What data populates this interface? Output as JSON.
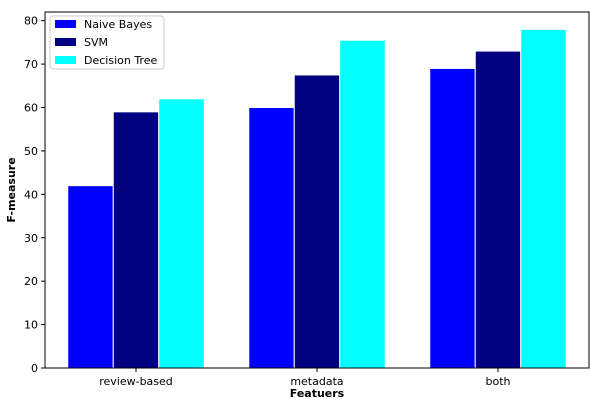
{
  "chart_data": {
    "type": "bar",
    "title": "",
    "xlabel": "Featuers",
    "ylabel": "F-measure",
    "categories": [
      "review-based",
      "metadata",
      "both"
    ],
    "series": [
      {
        "name": "Naive Bayes",
        "color": "#0000ff",
        "values": [
          42,
          60,
          69
        ]
      },
      {
        "name": "SVM",
        "color": "#000080",
        "values": [
          59,
          67.5,
          73
        ]
      },
      {
        "name": "Decision Tree",
        "color": "#00ffff",
        "values": [
          62,
          75.5,
          78
        ]
      }
    ],
    "ylim": [
      0,
      82
    ],
    "yticks": [
      0,
      10,
      20,
      30,
      40,
      50,
      60,
      70,
      80
    ],
    "grid": false,
    "legend_position": "top-left"
  }
}
